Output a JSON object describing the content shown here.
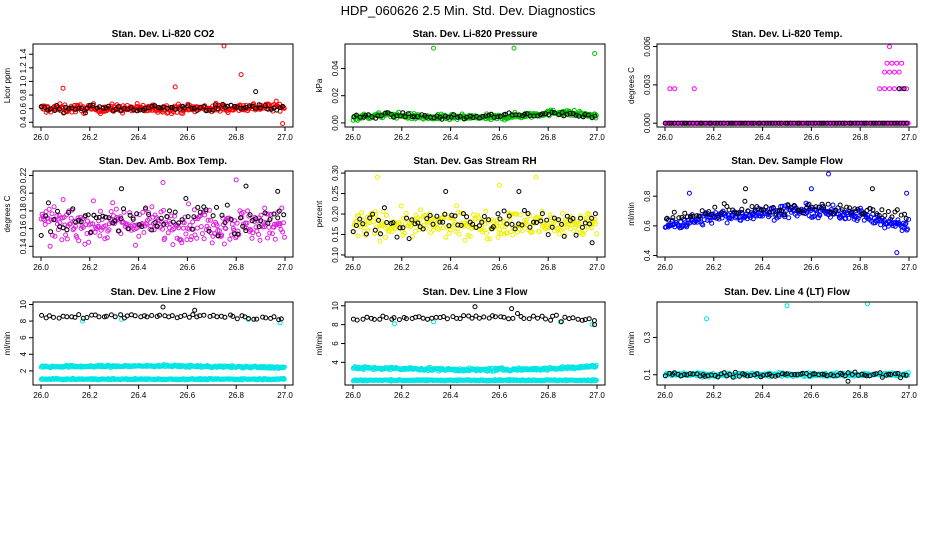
{
  "figure": {
    "title": "HDP_060626  2.5 Min. Std. Dev. Diagnostics",
    "dot_count_per_series": 300
  },
  "chart_data": [
    {
      "type": "scatter",
      "title": "Stan. Dev. Li-820 CO2",
      "ylabel": "Licor ppm",
      "xlim": [
        26.0,
        27.0
      ],
      "ylim": [
        0.33,
        1.55
      ],
      "xticks": [
        "26.0",
        "26.2",
        "26.4",
        "26.6",
        "26.8",
        "27.0"
      ],
      "yticks": [
        {
          "v": 0.4,
          "label": "0.4"
        },
        {
          "v": 0.6,
          "label": "0.6"
        },
        {
          "v": 0.8,
          "label": "0.8"
        },
        {
          "v": 1.0,
          "label": "1.0"
        },
        {
          "v": 1.2,
          "label": "1.2"
        },
        {
          "v": 1.4,
          "label": "1.4"
        }
      ],
      "series": [
        {
          "name": "red",
          "color": "#ff0000",
          "n": 300,
          "base": [
            [
              26.0,
              0.6
            ],
            [
              26.6,
              0.6
            ],
            [
              27.0,
              0.63
            ]
          ],
          "spread": 0.06,
          "outliers": [
            [
              26.09,
              0.9
            ],
            [
              26.75,
              1.52
            ],
            [
              26.82,
              1.1
            ],
            [
              26.55,
              0.92
            ],
            [
              26.99,
              0.38
            ]
          ]
        },
        {
          "name": "black",
          "color": "#000000",
          "n": 80,
          "base": [
            [
              26.0,
              0.6
            ],
            [
              27.0,
              0.62
            ]
          ],
          "spread": 0.05,
          "outliers": [
            [
              26.88,
              0.85
            ]
          ]
        }
      ]
    },
    {
      "type": "scatter",
      "title": "Stan. Dev. Li-820 Pressure",
      "ylabel": "kPa",
      "xlim": [
        26.0,
        27.0
      ],
      "ylim": [
        -0.003,
        0.058
      ],
      "xticks": [
        "26.0",
        "26.2",
        "26.4",
        "26.6",
        "26.8",
        "27.0"
      ],
      "yticks": [
        {
          "v": 0.0,
          "label": "0.00"
        },
        {
          "v": 0.02,
          "label": "0.02"
        },
        {
          "v": 0.04,
          "label": "0.04"
        }
      ],
      "series": [
        {
          "name": "green",
          "color": "#00c000",
          "n": 300,
          "base": [
            [
              26.0,
              0.004
            ],
            [
              26.15,
              0.006
            ],
            [
              26.3,
              0.004
            ],
            [
              26.6,
              0.004
            ],
            [
              26.85,
              0.008
            ],
            [
              27.0,
              0.005
            ]
          ],
          "spread": 0.002,
          "outliers": [
            [
              26.33,
              0.055
            ],
            [
              26.66,
              0.055
            ],
            [
              26.99,
              0.051
            ]
          ]
        },
        {
          "name": "black",
          "color": "#000000",
          "n": 80,
          "base": [
            [
              26.0,
              0.004
            ],
            [
              26.15,
              0.006
            ],
            [
              26.4,
              0.004
            ],
            [
              26.85,
              0.007
            ],
            [
              27.0,
              0.004
            ]
          ],
          "spread": 0.0015,
          "outliers": []
        }
      ]
    },
    {
      "type": "scatter",
      "title": "Stan. Dev. Li-820 Temp.",
      "ylabel": "degrees C",
      "xlim": [
        26.0,
        27.0
      ],
      "ylim": [
        -0.0003,
        0.0062
      ],
      "xticks": [
        "26.0",
        "26.2",
        "26.4",
        "26.6",
        "26.8",
        "27.0"
      ],
      "yticks": [
        {
          "v": 0.0,
          "label": "0.000"
        },
        {
          "v": 0.003,
          "label": "0.003"
        },
        {
          "v": 0.006,
          "label": "0.006"
        }
      ],
      "series": [
        {
          "name": "magenta",
          "color": "#ff00ff",
          "n": 300,
          "base": [
            [
              26.0,
              0.0
            ],
            [
              27.0,
              0.0
            ]
          ],
          "spread": 0.0,
          "outliers": [
            [
              26.02,
              0.0027
            ],
            [
              26.04,
              0.0027
            ],
            [
              26.12,
              0.0027
            ],
            [
              26.88,
              0.0027
            ],
            [
              26.9,
              0.0027
            ],
            [
              26.92,
              0.0027
            ],
            [
              26.94,
              0.0027
            ],
            [
              26.96,
              0.0027
            ],
            [
              26.9,
              0.004
            ],
            [
              26.92,
              0.004
            ],
            [
              26.94,
              0.004
            ],
            [
              26.96,
              0.004
            ],
            [
              26.91,
              0.0047
            ],
            [
              26.93,
              0.0047
            ],
            [
              26.95,
              0.0047
            ],
            [
              26.97,
              0.0047
            ],
            [
              26.92,
              0.006
            ],
            [
              26.97,
              0.0027
            ],
            [
              26.99,
              0.0027
            ]
          ]
        },
        {
          "name": "black",
          "color": "#000000",
          "n": 80,
          "base": [
            [
              26.0,
              0.0
            ],
            [
              27.0,
              0.0
            ]
          ],
          "spread": 0.0,
          "outliers": [
            [
              26.96,
              0.0027
            ],
            [
              26.98,
              0.0027
            ]
          ]
        }
      ]
    },
    {
      "type": "scatter",
      "title": "Stan. Dev. Amb. Box Temp.",
      "ylabel": "degrees C",
      "xlim": [
        26.0,
        27.0
      ],
      "ylim": [
        0.128,
        0.225
      ],
      "xticks": [
        "26.0",
        "26.2",
        "26.4",
        "26.6",
        "26.8",
        "27.0"
      ],
      "yticks": [
        {
          "v": 0.14,
          "label": "0.14"
        },
        {
          "v": 0.16,
          "label": "0.16"
        },
        {
          "v": 0.18,
          "label": "0.18"
        },
        {
          "v": 0.2,
          "label": "0.20"
        },
        {
          "v": 0.22,
          "label": "0.22"
        }
      ],
      "series": [
        {
          "name": "magenta",
          "color": "#dd22dd",
          "n": 300,
          "base": [
            [
              26.0,
              0.165
            ],
            [
              27.0,
              0.165
            ]
          ],
          "spread": 0.018,
          "outliers": [
            [
              26.8,
              0.215
            ],
            [
              26.5,
              0.212
            ]
          ]
        },
        {
          "name": "black",
          "color": "#000000",
          "n": 80,
          "base": [
            [
              26.0,
              0.168
            ],
            [
              27.0,
              0.168
            ]
          ],
          "spread": 0.02,
          "outliers": [
            [
              26.33,
              0.205
            ],
            [
              26.84,
              0.208
            ],
            [
              26.97,
              0.202
            ]
          ]
        }
      ]
    },
    {
      "type": "scatter",
      "title": "Stan. Dev. Gas Stream RH",
      "ylabel": "percent",
      "xlim": [
        26.0,
        27.0
      ],
      "ylim": [
        0.095,
        0.305
      ],
      "xticks": [
        "26.0",
        "26.2",
        "26.4",
        "26.6",
        "26.8",
        "27.0"
      ],
      "yticks": [
        {
          "v": 0.1,
          "label": "0.10"
        },
        {
          "v": 0.15,
          "label": "0.15"
        },
        {
          "v": 0.2,
          "label": "0.20"
        },
        {
          "v": 0.25,
          "label": "0.25"
        },
        {
          "v": 0.3,
          "label": "0.30"
        }
      ],
      "series": [
        {
          "name": "yellow",
          "color": "#f0f000",
          "n": 300,
          "base": [
            [
              26.0,
              0.175
            ],
            [
              27.0,
              0.175
            ]
          ],
          "spread": 0.03,
          "outliers": [
            [
              26.1,
              0.29
            ],
            [
              26.75,
              0.29
            ],
            [
              26.6,
              0.27
            ]
          ]
        },
        {
          "name": "black",
          "color": "#000000",
          "n": 80,
          "base": [
            [
              26.0,
              0.18
            ],
            [
              27.0,
              0.18
            ]
          ],
          "spread": 0.03,
          "outliers": [
            [
              26.38,
              0.255
            ],
            [
              26.68,
              0.255
            ],
            [
              26.98,
              0.13
            ]
          ]
        }
      ]
    },
    {
      "type": "scatter",
      "title": "Stan. Dev. Sample Flow",
      "ylabel": "ml/min",
      "xlim": [
        26.0,
        27.0
      ],
      "ylim": [
        0.39,
        0.97
      ],
      "xticks": [
        "26.0",
        "26.2",
        "26.4",
        "26.6",
        "26.8",
        "27.0"
      ],
      "yticks": [
        {
          "v": 0.4,
          "label": "0.4"
        },
        {
          "v": 0.6,
          "label": "0.6"
        },
        {
          "v": 0.8,
          "label": "0.8"
        }
      ],
      "series": [
        {
          "name": "blue",
          "color": "#0000ff",
          "n": 300,
          "base": [
            [
              26.0,
              0.6
            ],
            [
              26.2,
              0.66
            ],
            [
              26.5,
              0.7
            ],
            [
              26.8,
              0.68
            ],
            [
              26.9,
              0.62
            ],
            [
              27.0,
              0.6
            ]
          ],
          "spread": 0.04,
          "outliers": [
            [
              26.67,
              0.95
            ],
            [
              26.95,
              0.42
            ],
            [
              26.99,
              0.82
            ],
            [
              26.1,
              0.82
            ],
            [
              26.6,
              0.85
            ]
          ]
        },
        {
          "name": "black",
          "color": "#000000",
          "n": 80,
          "base": [
            [
              26.0,
              0.65
            ],
            [
              26.3,
              0.72
            ],
            [
              26.7,
              0.72
            ],
            [
              27.0,
              0.68
            ]
          ],
          "spread": 0.04,
          "outliers": [
            [
              26.33,
              0.85
            ],
            [
              26.85,
              0.85
            ]
          ]
        }
      ]
    },
    {
      "type": "scatter",
      "title": "Stan. Dev. Line 2 Flow",
      "ylabel": "ml/min",
      "xlim": [
        26.0,
        27.0
      ],
      "ylim": [
        0.3,
        10.3
      ],
      "xticks": [
        "26.0",
        "26.2",
        "26.4",
        "26.6",
        "26.8",
        "27.0"
      ],
      "yticks": [
        {
          "v": 2,
          "label": "2"
        },
        {
          "v": 4,
          "label": "4"
        },
        {
          "v": 6,
          "label": "6"
        },
        {
          "v": 8,
          "label": "8"
        },
        {
          "v": 10,
          "label": "10"
        }
      ],
      "series": [
        {
          "name": "cyan-upper",
          "color": "#00e5e5",
          "n": 300,
          "base": [
            [
              26.0,
              2.5
            ],
            [
              26.5,
              2.6
            ],
            [
              27.0,
              2.4
            ]
          ],
          "spread": 0.12,
          "outliers": []
        },
        {
          "name": "cyan-lower",
          "color": "#00e5e5",
          "n": 300,
          "base": [
            [
              26.0,
              1.0
            ],
            [
              27.0,
              1.0
            ]
          ],
          "spread": 0.07,
          "outliers": [
            [
              26.17,
              8.0
            ],
            [
              26.33,
              8.2
            ],
            [
              26.85,
              8.2
            ],
            [
              26.98,
              7.8
            ]
          ]
        },
        {
          "name": "black",
          "color": "#000000",
          "n": 60,
          "base": [
            [
              26.0,
              8.5
            ],
            [
              26.5,
              8.7
            ],
            [
              27.0,
              8.4
            ]
          ],
          "spread": 0.3,
          "outliers": [
            [
              26.5,
              9.7
            ],
            [
              26.63,
              9.3
            ]
          ]
        }
      ]
    },
    {
      "type": "scatter",
      "title": "Stan. Dev. Line 3 Flow",
      "ylabel": "ml/min",
      "xlim": [
        26.0,
        27.0
      ],
      "ylim": [
        1.6,
        10.4
      ],
      "xticks": [
        "26.0",
        "26.2",
        "26.4",
        "26.6",
        "26.8",
        "27.0"
      ],
      "yticks": [
        {
          "v": 4,
          "label": "4"
        },
        {
          "v": 6,
          "label": "6"
        },
        {
          "v": 8,
          "label": "8"
        },
        {
          "v": 10,
          "label": "10"
        }
      ],
      "series": [
        {
          "name": "cyan-upper",
          "color": "#00e5e5",
          "n": 300,
          "base": [
            [
              26.0,
              3.4
            ],
            [
              26.5,
              3.2
            ],
            [
              26.8,
              3.3
            ],
            [
              27.0,
              3.6
            ]
          ],
          "spread": 0.15,
          "outliers": []
        },
        {
          "name": "cyan-lower",
          "color": "#00e5e5",
          "n": 300,
          "base": [
            [
              26.0,
              2.1
            ],
            [
              27.0,
              2.1
            ]
          ],
          "spread": 0.06,
          "outliers": [
            [
              26.17,
              8.1
            ],
            [
              26.33,
              8.3
            ],
            [
              26.85,
              8.3
            ],
            [
              26.98,
              8.0
            ]
          ]
        },
        {
          "name": "black",
          "color": "#000000",
          "n": 60,
          "base": [
            [
              26.0,
              8.6
            ],
            [
              26.5,
              8.8
            ],
            [
              27.0,
              8.5
            ]
          ],
          "spread": 0.3,
          "outliers": [
            [
              26.5,
              9.9
            ],
            [
              26.65,
              9.7
            ],
            [
              26.99,
              8.0
            ]
          ]
        }
      ]
    },
    {
      "type": "scatter",
      "title": "Stan. Dev. Line 4 (LT) Flow",
      "ylabel": "ml/min",
      "xlim": [
        26.0,
        27.0
      ],
      "ylim": [
        0.045,
        0.49
      ],
      "xticks": [
        "26.0",
        "26.2",
        "26.4",
        "26.6",
        "26.8",
        "27.0"
      ],
      "yticks": [
        {
          "v": 0.1,
          "label": "0.1"
        },
        {
          "v": 0.3,
          "label": "0.3"
        }
      ],
      "series": [
        {
          "name": "cyan",
          "color": "#00e5e5",
          "n": 300,
          "base": [
            [
              26.0,
              0.1
            ],
            [
              27.0,
              0.1
            ]
          ],
          "spread": 0.01,
          "outliers": [
            [
              26.17,
              0.4
            ],
            [
              26.5,
              0.47
            ],
            [
              26.83,
              0.48
            ]
          ]
        },
        {
          "name": "black",
          "color": "#000000",
          "n": 80,
          "base": [
            [
              26.0,
              0.1
            ],
            [
              27.0,
              0.1
            ]
          ],
          "spread": 0.012,
          "outliers": [
            [
              26.75,
              0.065
            ]
          ]
        }
      ]
    }
  ]
}
